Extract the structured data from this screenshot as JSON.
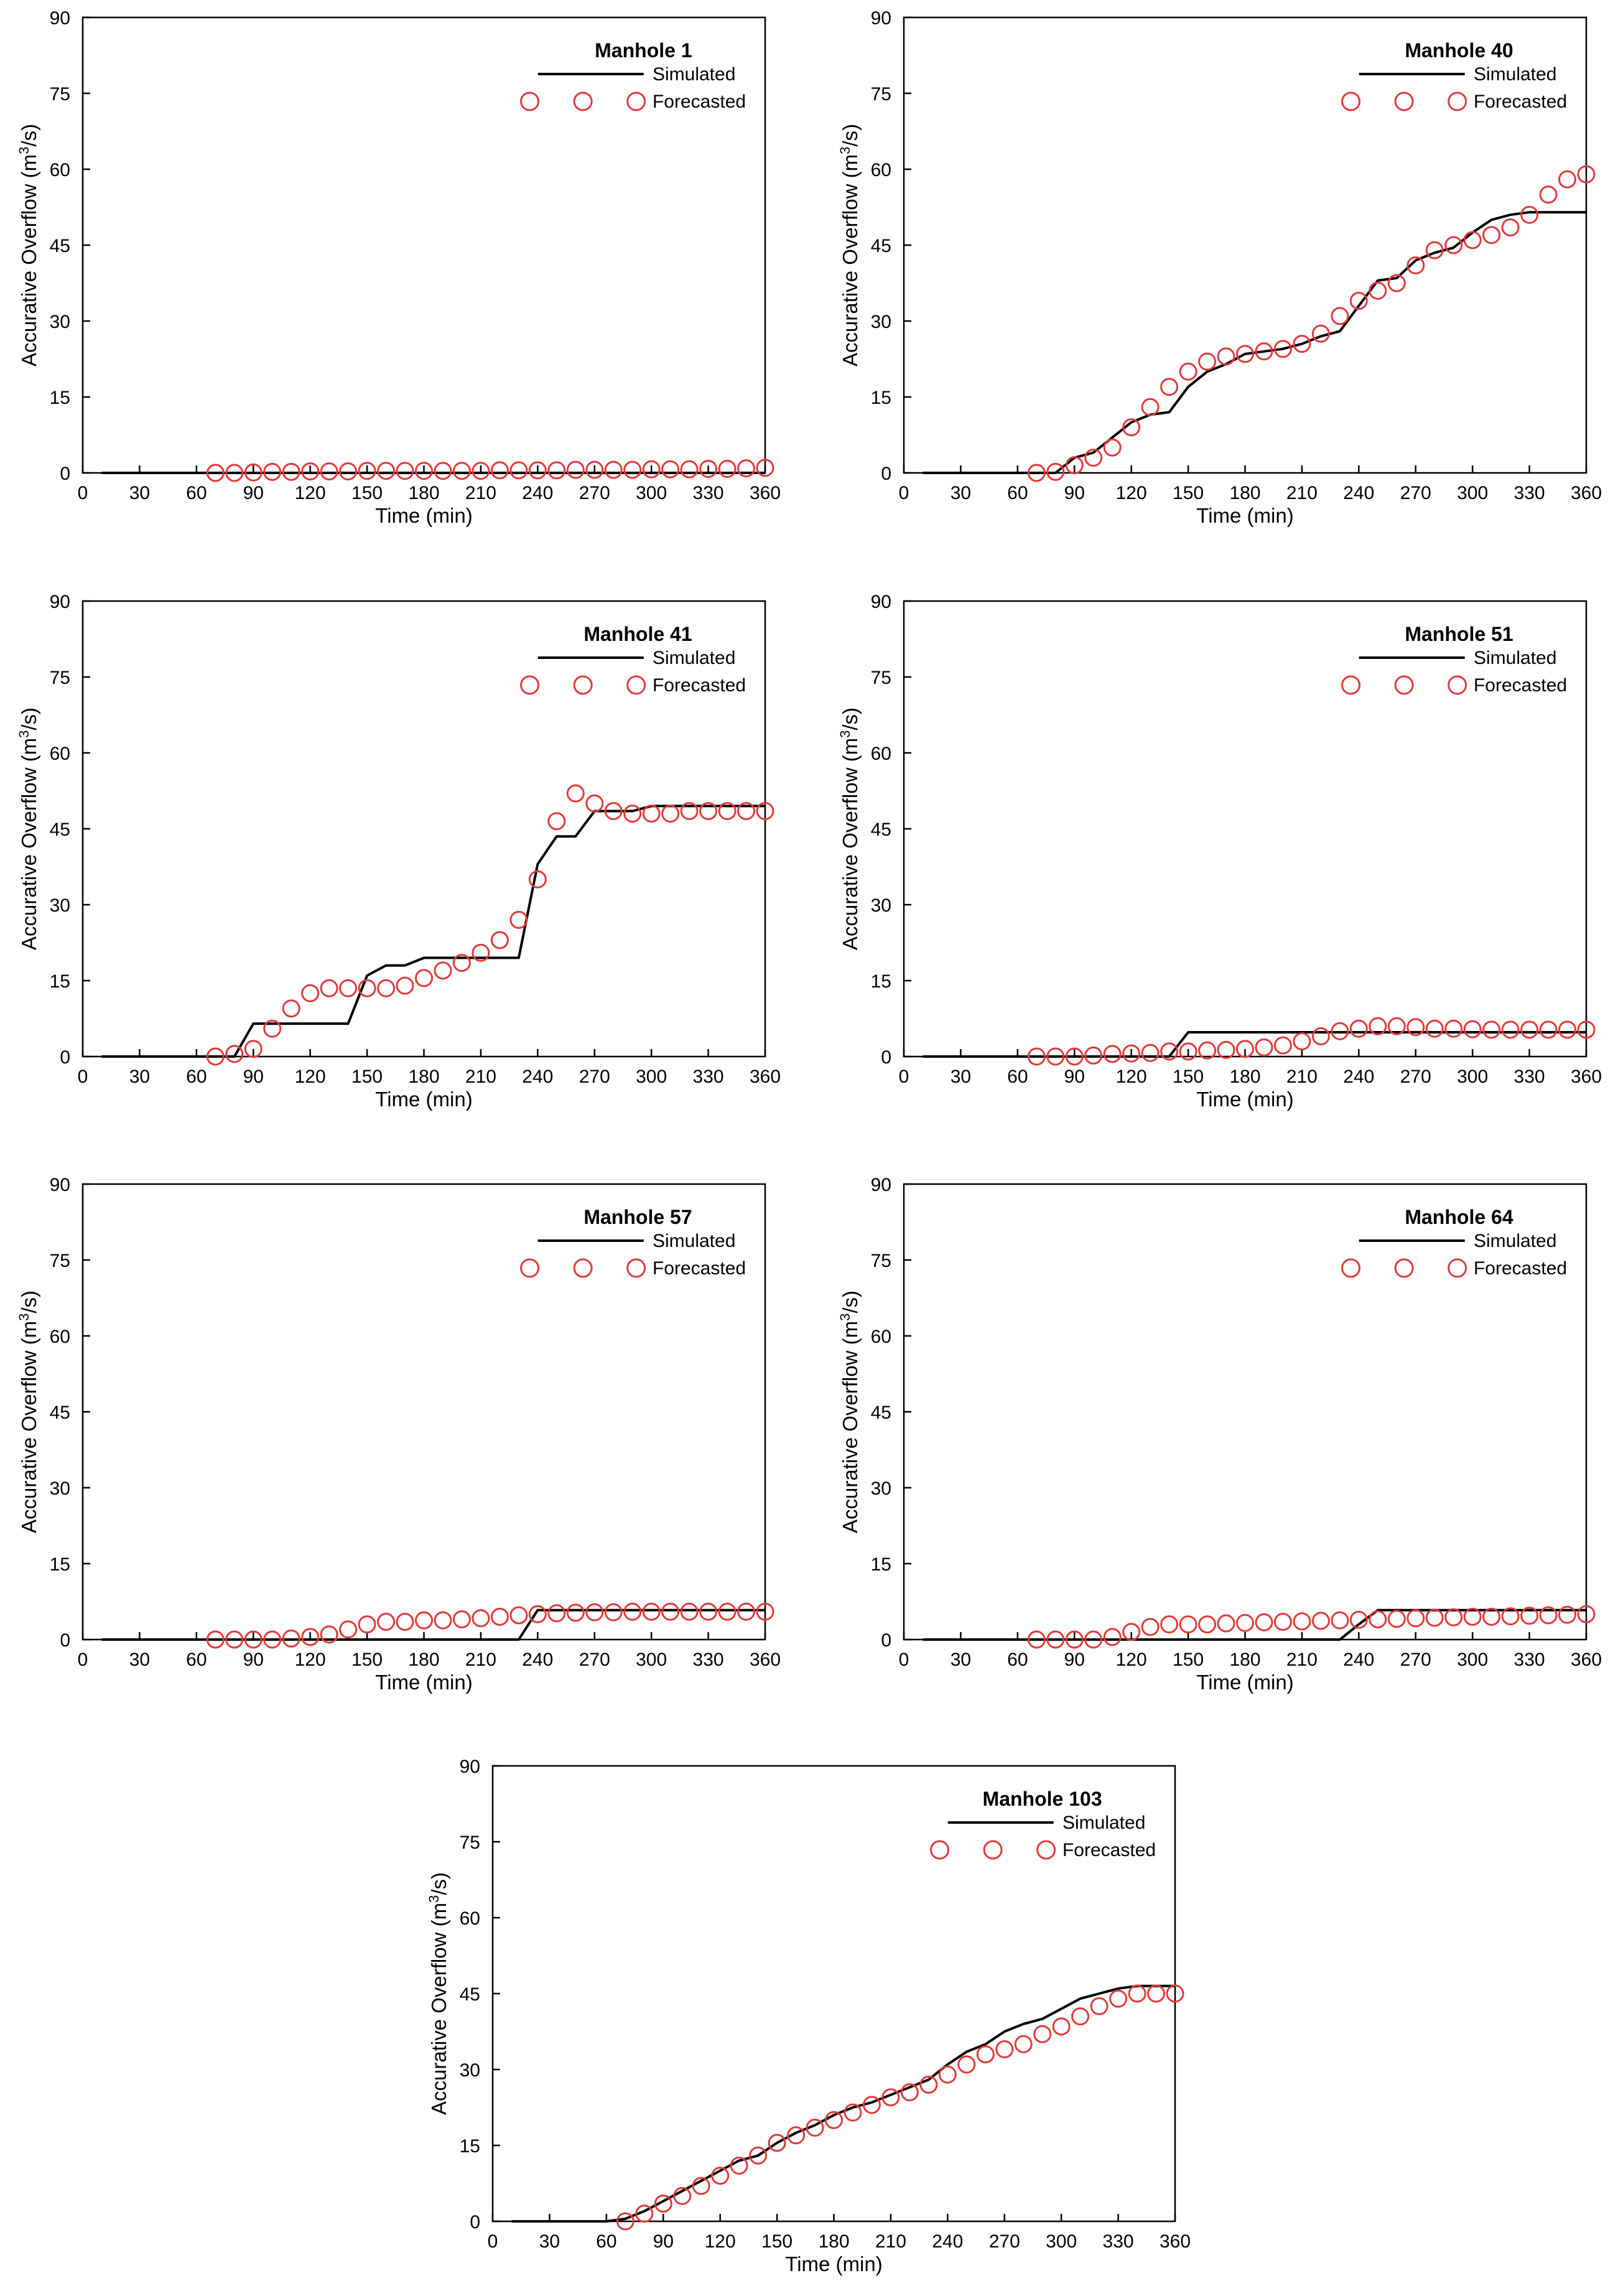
{
  "colors": {
    "simulated": "#000000",
    "forecasted": "#e03a3a",
    "axis": "#000000"
  },
  "chart_data": [
    {
      "type": "line",
      "title": "Manhole 1",
      "xlabel": "Time (min)",
      "ylabel": "Accurative Overflow (m3/s)",
      "xlim": [
        0,
        360
      ],
      "ylim": [
        0,
        90
      ],
      "xticks": [
        "0",
        "30",
        "60",
        "90",
        "120",
        "150",
        "180",
        "210",
        "240",
        "270",
        "300",
        "330",
        "360"
      ],
      "yticks": [
        "0",
        "15",
        "30",
        "45",
        "60",
        "75",
        "90"
      ],
      "legend": [
        "Simulated",
        "Forecasted"
      ],
      "legend_position": "top-right",
      "series": [
        {
          "name": "Simulated",
          "style": "line",
          "x": [
            10,
            360
          ],
          "y": [
            0,
            0
          ]
        },
        {
          "name": "Forecasted",
          "style": "open-circle",
          "x": [
            70,
            80,
            90,
            100,
            110,
            120,
            130,
            140,
            150,
            160,
            170,
            180,
            190,
            200,
            210,
            220,
            230,
            240,
            250,
            260,
            270,
            280,
            290,
            300,
            310,
            320,
            330,
            340,
            350,
            360
          ],
          "y": [
            0,
            0,
            0.1,
            0.2,
            0.2,
            0.3,
            0.3,
            0.3,
            0.4,
            0.4,
            0.4,
            0.4,
            0.4,
            0.4,
            0.4,
            0.5,
            0.5,
            0.5,
            0.5,
            0.6,
            0.6,
            0.6,
            0.6,
            0.7,
            0.7,
            0.7,
            0.8,
            0.8,
            0.9,
            1.0
          ]
        }
      ]
    },
    {
      "type": "line",
      "title": "Manhole 40",
      "xlabel": "Time (min)",
      "ylabel": "Accurative Overflow (m3/s)",
      "xlim": [
        0,
        360
      ],
      "ylim": [
        0,
        90
      ],
      "xticks": [
        "0",
        "30",
        "60",
        "90",
        "120",
        "150",
        "180",
        "210",
        "240",
        "270",
        "300",
        "330",
        "360"
      ],
      "yticks": [
        "0",
        "15",
        "30",
        "45",
        "60",
        "75",
        "90"
      ],
      "legend": [
        "Simulated",
        "Forecasted"
      ],
      "legend_position": "top-right",
      "series": [
        {
          "name": "Simulated",
          "style": "line",
          "x": [
            10,
            80,
            90,
            100,
            110,
            120,
            130,
            140,
            150,
            160,
            170,
            180,
            190,
            200,
            210,
            220,
            230,
            240,
            250,
            260,
            270,
            280,
            290,
            300,
            310,
            320,
            330,
            340,
            350,
            360
          ],
          "y": [
            0,
            0,
            3,
            4,
            7,
            10,
            11.5,
            12,
            17,
            20,
            21.5,
            23.5,
            24,
            24.5,
            25.5,
            27,
            28,
            33,
            38,
            38.5,
            42,
            43.5,
            44.5,
            47.5,
            50,
            51,
            51.5,
            51.5,
            51.5,
            51.5
          ]
        },
        {
          "name": "Forecasted",
          "style": "open-circle",
          "x": [
            70,
            80,
            90,
            100,
            110,
            120,
            130,
            140,
            150,
            160,
            170,
            180,
            190,
            200,
            210,
            220,
            230,
            240,
            250,
            260,
            270,
            280,
            290,
            300,
            310,
            320,
            330,
            340,
            350,
            360
          ],
          "y": [
            0,
            0.2,
            1.5,
            3,
            5,
            9,
            13,
            17,
            20,
            22,
            23,
            23.5,
            24,
            24.5,
            25.5,
            27.5,
            31,
            34,
            36,
            37.5,
            41,
            44,
            45,
            46,
            47,
            48.5,
            51,
            55,
            58,
            59
          ]
        }
      ]
    },
    {
      "type": "line",
      "title": "Manhole 41",
      "xlabel": "Time (min)",
      "ylabel": "Accurative Overflow (m3/s)",
      "xlim": [
        0,
        360
      ],
      "ylim": [
        0,
        90
      ],
      "xticks": [
        "0",
        "30",
        "60",
        "90",
        "120",
        "150",
        "180",
        "210",
        "240",
        "270",
        "300",
        "330",
        "360"
      ],
      "yticks": [
        "0",
        "15",
        "30",
        "45",
        "60",
        "75",
        "90"
      ],
      "legend": [
        "Simulated",
        "Forecasted"
      ],
      "legend_position": "top-right",
      "series": [
        {
          "name": "Simulated",
          "style": "line",
          "x": [
            10,
            80,
            90,
            140,
            150,
            160,
            170,
            180,
            190,
            230,
            240,
            250,
            260,
            270,
            280,
            290,
            300,
            360
          ],
          "y": [
            0,
            0,
            6.5,
            6.5,
            16,
            18,
            18,
            19.5,
            19.5,
            19.5,
            38,
            43.5,
            43.5,
            48.5,
            48.5,
            48.5,
            49.5,
            49.5
          ]
        },
        {
          "name": "Forecasted",
          "style": "open-circle",
          "x": [
            70,
            80,
            90,
            100,
            110,
            120,
            130,
            140,
            150,
            160,
            170,
            180,
            190,
            200,
            210,
            220,
            230,
            240,
            250,
            260,
            270,
            280,
            290,
            300,
            310,
            320,
            330,
            340,
            350,
            360
          ],
          "y": [
            0,
            0.5,
            1.5,
            5.5,
            9.5,
            12.5,
            13.5,
            13.5,
            13.5,
            13.5,
            14,
            15.5,
            17,
            18.5,
            20.5,
            23,
            27,
            35,
            46.5,
            52,
            50,
            48.5,
            48,
            48,
            48,
            48.5,
            48.5,
            48.5,
            48.5,
            48.5
          ]
        }
      ]
    },
    {
      "type": "line",
      "title": "Manhole 51",
      "xlabel": "Time (min)",
      "ylabel": "Accurative Overflow (m3/s)",
      "xlim": [
        0,
        360
      ],
      "ylim": [
        0,
        90
      ],
      "xticks": [
        "0",
        "30",
        "60",
        "90",
        "120",
        "150",
        "180",
        "210",
        "240",
        "270",
        "300",
        "330",
        "360"
      ],
      "yticks": [
        "0",
        "15",
        "30",
        "45",
        "60",
        "75",
        "90"
      ],
      "legend": [
        "Simulated",
        "Forecasted"
      ],
      "legend_position": "top-right",
      "series": [
        {
          "name": "Simulated",
          "style": "line",
          "x": [
            10,
            140,
            150,
            360
          ],
          "y": [
            0,
            0,
            4.8,
            4.8
          ]
        },
        {
          "name": "Forecasted",
          "style": "open-circle",
          "x": [
            70,
            80,
            90,
            100,
            110,
            120,
            130,
            140,
            150,
            160,
            170,
            180,
            190,
            200,
            210,
            220,
            230,
            240,
            250,
            260,
            270,
            280,
            290,
            300,
            310,
            320,
            330,
            340,
            350,
            360
          ],
          "y": [
            0,
            0,
            0,
            0.2,
            0.5,
            0.6,
            0.7,
            1,
            1,
            1.2,
            1.3,
            1.5,
            1.8,
            2.2,
            3,
            4,
            5,
            5.5,
            6,
            6,
            5.8,
            5.5,
            5.5,
            5.4,
            5.3,
            5.3,
            5.3,
            5.3,
            5.3,
            5.3
          ]
        }
      ]
    },
    {
      "type": "line",
      "title": "Manhole 57",
      "xlabel": "Time (min)",
      "ylabel": "Accurative Overflow (m3/s)",
      "xlim": [
        0,
        360
      ],
      "ylim": [
        0,
        90
      ],
      "xticks": [
        "0",
        "30",
        "60",
        "90",
        "120",
        "150",
        "180",
        "210",
        "240",
        "270",
        "300",
        "330",
        "360"
      ],
      "yticks": [
        "0",
        "15",
        "30",
        "45",
        "60",
        "75",
        "90"
      ],
      "legend": [
        "Simulated",
        "Forecasted"
      ],
      "legend_position": "top-right",
      "series": [
        {
          "name": "Simulated",
          "style": "line",
          "x": [
            10,
            230,
            240,
            360
          ],
          "y": [
            0,
            0,
            5.8,
            5.8
          ]
        },
        {
          "name": "Forecasted",
          "style": "open-circle",
          "x": [
            70,
            80,
            90,
            100,
            110,
            120,
            130,
            140,
            150,
            160,
            170,
            180,
            190,
            200,
            210,
            220,
            230,
            240,
            250,
            260,
            270,
            280,
            290,
            300,
            310,
            320,
            330,
            340,
            350,
            360
          ],
          "y": [
            0,
            0,
            0,
            0,
            0.2,
            0.5,
            1,
            2,
            3,
            3.5,
            3.5,
            3.8,
            3.8,
            4,
            4.2,
            4.5,
            4.8,
            5,
            5.2,
            5.3,
            5.4,
            5.4,
            5.5,
            5.5,
            5.5,
            5.5,
            5.5,
            5.5,
            5.5,
            5.5
          ]
        }
      ]
    },
    {
      "type": "line",
      "title": "Manhole 64",
      "xlabel": "Time (min)",
      "ylabel": "Accurative Overflow (m3/s)",
      "xlim": [
        0,
        360
      ],
      "ylim": [
        0,
        90
      ],
      "xticks": [
        "0",
        "30",
        "60",
        "90",
        "120",
        "150",
        "180",
        "210",
        "240",
        "270",
        "300",
        "330",
        "360"
      ],
      "yticks": [
        "0",
        "15",
        "30",
        "45",
        "60",
        "75",
        "90"
      ],
      "legend": [
        "Simulated",
        "Forecasted"
      ],
      "legend_position": "top-right",
      "series": [
        {
          "name": "Simulated",
          "style": "line",
          "x": [
            10,
            230,
            240,
            250,
            360
          ],
          "y": [
            0,
            0,
            3,
            5.8,
            5.8
          ]
        },
        {
          "name": "Forecasted",
          "style": "open-circle",
          "x": [
            70,
            80,
            90,
            100,
            110,
            120,
            130,
            140,
            150,
            160,
            170,
            180,
            190,
            200,
            210,
            220,
            230,
            240,
            250,
            260,
            270,
            280,
            290,
            300,
            310,
            320,
            330,
            340,
            350,
            360
          ],
          "y": [
            0,
            0,
            0,
            0,
            0.5,
            1.5,
            2.5,
            3,
            3,
            3,
            3.2,
            3.3,
            3.4,
            3.5,
            3.6,
            3.7,
            3.8,
            3.9,
            4,
            4.1,
            4.2,
            4.3,
            4.4,
            4.5,
            4.5,
            4.6,
            4.7,
            4.8,
            4.9,
            5
          ]
        }
      ]
    },
    {
      "type": "line",
      "title": "Manhole 103",
      "xlabel": "Time (min)",
      "ylabel": "Accurative Overflow (m3/s)",
      "xlim": [
        0,
        360
      ],
      "ylim": [
        0,
        90
      ],
      "xticks": [
        "0",
        "30",
        "60",
        "90",
        "120",
        "150",
        "180",
        "210",
        "240",
        "270",
        "300",
        "330",
        "360"
      ],
      "yticks": [
        "0",
        "15",
        "30",
        "45",
        "60",
        "75",
        "90"
      ],
      "legend": [
        "Simulated",
        "Forecasted"
      ],
      "legend_position": "top-right",
      "series": [
        {
          "name": "Simulated",
          "style": "line",
          "x": [
            10,
            60,
            70,
            80,
            90,
            100,
            110,
            120,
            130,
            140,
            150,
            160,
            170,
            180,
            190,
            200,
            210,
            220,
            230,
            240,
            250,
            260,
            270,
            280,
            290,
            300,
            310,
            320,
            330,
            340,
            350,
            360
          ],
          "y": [
            0,
            0,
            0.5,
            2,
            4,
            6,
            8,
            10,
            12,
            13,
            15.5,
            17.5,
            19,
            21,
            22.5,
            23.5,
            25,
            26.5,
            28,
            31,
            33.5,
            35,
            37.5,
            39,
            40,
            42,
            44,
            45,
            46,
            46.5,
            46.5,
            46.5
          ]
        },
        {
          "name": "Forecasted",
          "style": "open-circle",
          "x": [
            70,
            80,
            90,
            100,
            110,
            120,
            130,
            140,
            150,
            160,
            170,
            180,
            190,
            200,
            210,
            220,
            230,
            240,
            250,
            260,
            270,
            280,
            290,
            300,
            310,
            320,
            330,
            340,
            350,
            360
          ],
          "y": [
            0,
            1.5,
            3.5,
            5,
            7,
            9,
            11,
            13,
            15.5,
            17,
            18.5,
            20,
            21.5,
            23,
            24.5,
            25.5,
            27,
            29,
            31,
            33,
            34,
            35,
            37,
            38.5,
            40.5,
            42.5,
            44,
            45,
            45,
            45
          ]
        }
      ]
    }
  ]
}
